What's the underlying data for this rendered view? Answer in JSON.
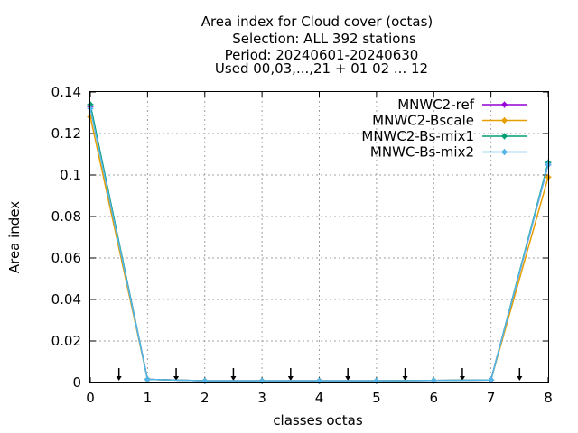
{
  "chart_data": {
    "type": "line",
    "title_lines": [
      "Area index  for Cloud cover (octas)",
      "Selection: ALL    392 stations",
      "Period: 20240601-20240630",
      "Used 00,03,...,21 + 01 02 ... 12"
    ],
    "xlabel": "classes octas",
    "ylabel": "Area index",
    "xlim": [
      0,
      8
    ],
    "ylim": [
      0,
      0.14
    ],
    "x_ticks": [
      "0",
      "1",
      "2",
      "3",
      "4",
      "5",
      "6",
      "7",
      "8"
    ],
    "y_ticks": [
      "0",
      "0.02",
      "0.04",
      "0.06",
      "0.08",
      "0.1",
      "0.12",
      "0.14"
    ],
    "grid": true,
    "legend_position": "top-right",
    "x": [
      0,
      1,
      2,
      3,
      4,
      5,
      6,
      7,
      8
    ],
    "series": [
      {
        "name": "MNWC2-ref",
        "color": "#9400d3",
        "values": [
          0.133,
          0.0015,
          0.0008,
          0.0008,
          0.0008,
          0.0008,
          0.001,
          0.0012,
          0.105
        ]
      },
      {
        "name": "MNWC2-Bscale",
        "color": "#e69f00",
        "values": [
          0.128,
          0.0015,
          0.0008,
          0.0008,
          0.0008,
          0.0008,
          0.001,
          0.0012,
          0.099
        ]
      },
      {
        "name": "MNWC2-Bs-mix1",
        "color": "#009e73",
        "values": [
          0.134,
          0.0015,
          0.0008,
          0.0008,
          0.0008,
          0.0008,
          0.001,
          0.0012,
          0.106
        ]
      },
      {
        "name": "MNWC-Bs-mix2",
        "color": "#56b4e9",
        "values": [
          0.132,
          0.0015,
          0.0008,
          0.0008,
          0.0008,
          0.0008,
          0.001,
          0.0012,
          0.105
        ]
      }
    ],
    "arrows_x": [
      0.5,
      1.5,
      2.5,
      3.5,
      4.5,
      5.5,
      6.5,
      7.5
    ]
  }
}
